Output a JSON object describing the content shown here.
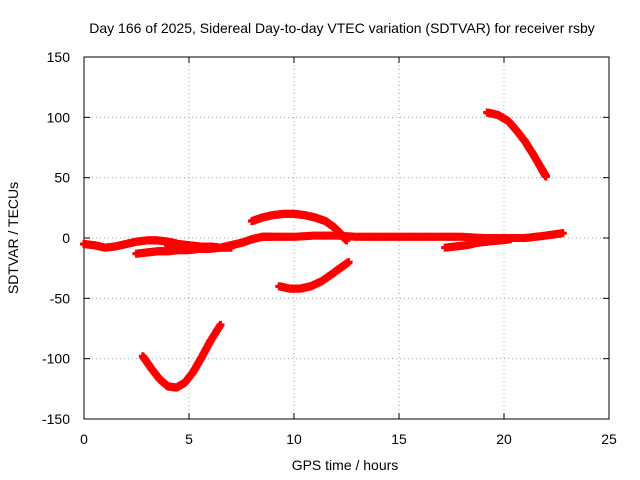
{
  "chart_data": {
    "type": "scatter",
    "title": "Day 166 of 2025, Sidereal Day-to-day VTEC variation (SDTVAR) for receiver rsby",
    "xlabel": "GPS time / hours",
    "ylabel": "SDTVAR / TECUs",
    "xlim": [
      0,
      25
    ],
    "ylim": [
      -150,
      150
    ],
    "xticks": [
      "0",
      "5",
      "10",
      "15",
      "20",
      "25"
    ],
    "yticks": [
      "-150",
      "-100",
      "-50",
      "0",
      "50",
      "100",
      "150"
    ],
    "grid": true,
    "legend": "none",
    "marker": "plus",
    "color": "#ff0000",
    "series": [
      {
        "values": [
          [
            0.0,
            -5
          ],
          [
            0.5,
            -6
          ],
          [
            1.0,
            -8
          ],
          [
            1.5,
            -7
          ],
          [
            2.0,
            -5
          ],
          [
            2.5,
            -3
          ],
          [
            3.0,
            -2
          ],
          [
            3.5,
            -2
          ],
          [
            4.0,
            -3
          ],
          [
            4.5,
            -5
          ],
          [
            5.0,
            -6
          ],
          [
            5.5,
            -7
          ],
          [
            6.0,
            -7
          ],
          [
            6.5,
            -8
          ],
          [
            7.0,
            -6
          ],
          [
            7.5,
            -4
          ],
          [
            8.0,
            -1
          ],
          [
            8.5,
            1
          ],
          [
            9.0,
            1
          ],
          [
            10.0,
            1
          ],
          [
            11.0,
            2
          ],
          [
            12.0,
            2
          ],
          [
            13.0,
            1
          ],
          [
            14.0,
            1
          ],
          [
            15.0,
            1
          ],
          [
            16.0,
            1
          ],
          [
            17.0,
            1
          ],
          [
            18.0,
            1
          ],
          [
            19.0,
            0
          ],
          [
            20.0,
            0
          ],
          [
            21.0,
            0
          ],
          [
            22.0,
            2
          ],
          [
            22.8,
            4
          ]
        ]
      },
      {
        "values": [
          [
            2.5,
            -13
          ],
          [
            3.0,
            -12
          ],
          [
            3.5,
            -11
          ],
          [
            4.0,
            -11
          ],
          [
            4.5,
            -10
          ],
          [
            5.0,
            -10
          ],
          [
            5.5,
            -9
          ],
          [
            6.0,
            -9
          ],
          [
            6.5,
            -8
          ],
          [
            7.0,
            -8
          ]
        ]
      },
      {
        "values": [
          [
            4.0,
            -6
          ],
          [
            4.5,
            -8
          ],
          [
            5.0,
            -9
          ],
          [
            5.5,
            -9
          ],
          [
            6.0,
            -8
          ]
        ]
      },
      {
        "values": [
          [
            2.8,
            -98
          ],
          [
            3.2,
            -108
          ],
          [
            3.6,
            -117
          ],
          [
            4.0,
            -123
          ],
          [
            4.4,
            -124
          ],
          [
            4.8,
            -120
          ],
          [
            5.2,
            -111
          ],
          [
            5.6,
            -99
          ],
          [
            6.0,
            -86
          ],
          [
            6.5,
            -72
          ]
        ]
      },
      {
        "values": [
          [
            8.0,
            14
          ],
          [
            8.5,
            17
          ],
          [
            9.0,
            19
          ],
          [
            9.5,
            20
          ],
          [
            10.0,
            20
          ],
          [
            10.5,
            19
          ],
          [
            11.0,
            17
          ],
          [
            11.5,
            14
          ],
          [
            11.9,
            9
          ],
          [
            12.2,
            4
          ],
          [
            12.5,
            -2
          ]
        ]
      },
      {
        "values": [
          [
            9.3,
            -40
          ],
          [
            9.8,
            -42
          ],
          [
            10.3,
            -42
          ],
          [
            10.8,
            -40
          ],
          [
            11.3,
            -36
          ],
          [
            11.8,
            -30
          ],
          [
            12.2,
            -25
          ],
          [
            12.6,
            -20
          ]
        ]
      },
      {
        "values": [
          [
            17.2,
            -8
          ],
          [
            17.7,
            -7
          ],
          [
            18.2,
            -6
          ],
          [
            18.7,
            -4
          ],
          [
            19.2,
            -3
          ],
          [
            19.8,
            -2
          ],
          [
            20.3,
            -1
          ]
        ]
      },
      {
        "values": [
          [
            19.2,
            104
          ],
          [
            19.7,
            102
          ],
          [
            20.2,
            97
          ],
          [
            20.6,
            89
          ],
          [
            21.0,
            80
          ],
          [
            21.4,
            69
          ],
          [
            21.8,
            57
          ],
          [
            22.0,
            51
          ]
        ]
      }
    ]
  }
}
